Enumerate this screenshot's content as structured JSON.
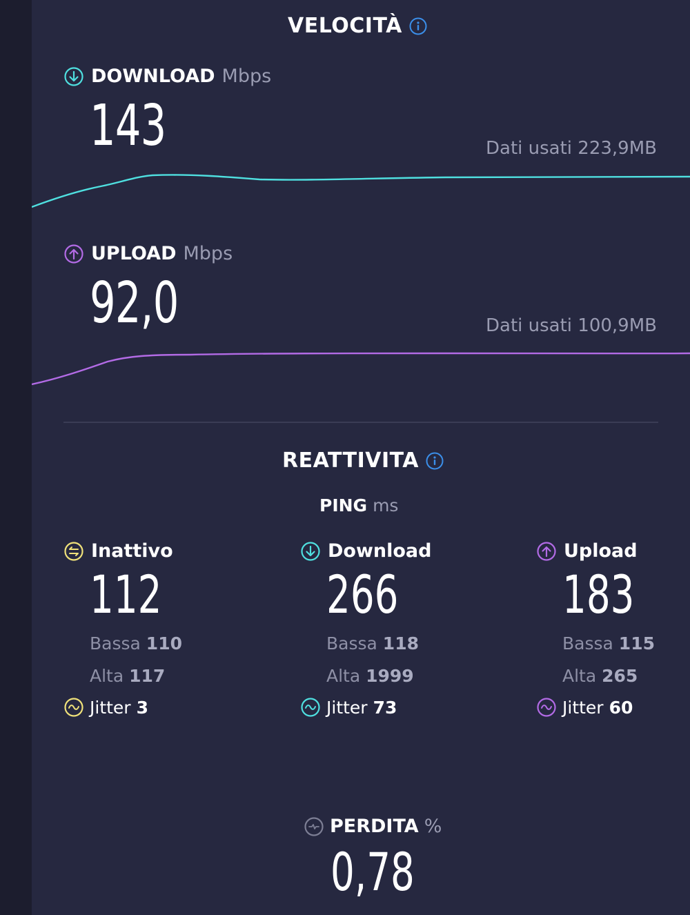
{
  "colors": {
    "background": "#262840",
    "download": "#4fe0e0",
    "upload": "#b36be6",
    "idle": "#f0e27a",
    "info": "#3b8fea",
    "muted": "#9a9cb2"
  },
  "speed": {
    "title": "VELOCITÀ",
    "info_icon": "info-icon",
    "download": {
      "label": "DOWNLOAD",
      "unit": "Mbps",
      "value": "143",
      "data_used": "Dati usati 223,9MB",
      "icon": "download-arrow-icon"
    },
    "upload": {
      "label": "UPLOAD",
      "unit": "Mbps",
      "value": "92,0",
      "data_used": "Dati usati 100,9MB",
      "icon": "upload-arrow-icon"
    }
  },
  "responsiveness": {
    "title": "REATTIVITA",
    "ping_label": "PING",
    "ping_unit": "ms",
    "columns": [
      {
        "label": "Inattivo",
        "value": "112",
        "low_label": "Bassa",
        "low_value": "110",
        "high_label": "Alta",
        "high_value": "117",
        "jitter_label": "Jitter",
        "jitter_value": "3",
        "icon": "idle-icon"
      },
      {
        "label": "Download",
        "value": "266",
        "low_label": "Bassa",
        "low_value": "118",
        "high_label": "Alta",
        "high_value": "1999",
        "jitter_label": "Jitter",
        "jitter_value": "73",
        "icon": "download-arrow-icon"
      },
      {
        "label": "Upload",
        "value": "183",
        "low_label": "Bassa",
        "low_value": "115",
        "high_label": "Alta",
        "high_value": "265",
        "jitter_label": "Jitter",
        "jitter_value": "60",
        "icon": "upload-arrow-icon"
      }
    ]
  },
  "loss": {
    "label": "PERDITA",
    "unit": "%",
    "value": "0,78",
    "icon": "packet-loss-icon"
  }
}
